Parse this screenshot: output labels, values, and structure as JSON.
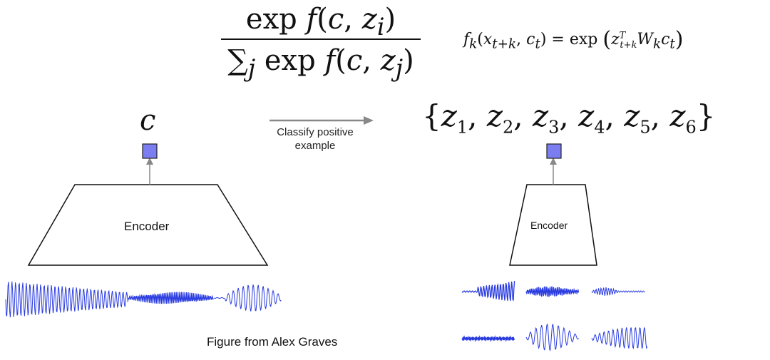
{
  "formula_main": {
    "numerator": "exp f(c, z_i)",
    "denominator": "∑_j exp f(c, z_j)"
  },
  "formula_score": "f_k(x_{t+k}, c_t) = exp ( z_{t+k}^T W_k c_t )",
  "context_symbol": "c",
  "candidate_set": "{z_1, z_2, z_3, z_4, z_5, z_6}",
  "arrow_label": "Classify positive example",
  "encoder_left_label": "Encoder",
  "encoder_right_label": "Encoder",
  "caption": "Figure from Alex Graves",
  "colors": {
    "accent_fill": "#7b7ef0",
    "waveform": "#2a3ce0",
    "arrow": "#888888"
  }
}
